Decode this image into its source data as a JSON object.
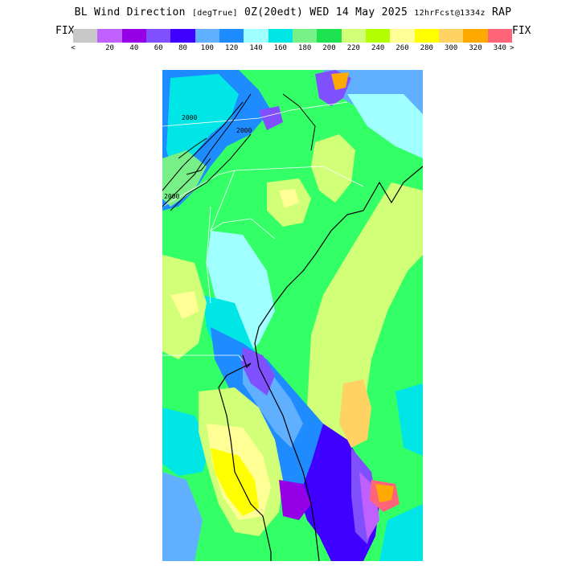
{
  "title": {
    "field": "BL Wind Direction",
    "units": "[degTrue]",
    "valid": "0Z(20edt) WED 14 May 2025",
    "forecast": "12hrFcst@1334z",
    "model": "RAP"
  },
  "legend": {
    "left_label": "FIX",
    "right_label": "FIX",
    "low_marker": "<",
    "high_marker": ">",
    "colors": [
      "#c8c8c8",
      "#c060ff",
      "#9600e6",
      "#8050ff",
      "#4000ff",
      "#60b0ff",
      "#1e8cff",
      "#a0ffff",
      "#00e6e6",
      "#78f088",
      "#1ee150",
      "#d2ff78",
      "#b4ff00",
      "#ffff96",
      "#ffff00",
      "#ffd264",
      "#ffaa00",
      "#ff6478"
    ],
    "ticks": [
      "20",
      "40",
      "60",
      "80",
      "100",
      "120",
      "140",
      "160",
      "180",
      "200",
      "220",
      "240",
      "260",
      "280",
      "300",
      "320",
      "340"
    ]
  },
  "map": {
    "contour_labels": [
      "2000",
      "2000",
      "2000"
    ],
    "region_colors": {
      "green": "#33ff66",
      "light_green": "#78f088",
      "yellow_green": "#d2ff78",
      "cyan": "#00e6e6",
      "pale_cyan": "#a0ffff",
      "light_blue": "#60b0ff",
      "blue": "#1e8cff",
      "indigo": "#4000ff",
      "purple": "#8050ff",
      "violet": "#9600e6",
      "lilac": "#c060ff",
      "yellow": "#ffff00",
      "pale_yellow": "#ffff96",
      "tan": "#ffd264",
      "orange": "#ffaa00",
      "pink": "#ff6478"
    }
  }
}
